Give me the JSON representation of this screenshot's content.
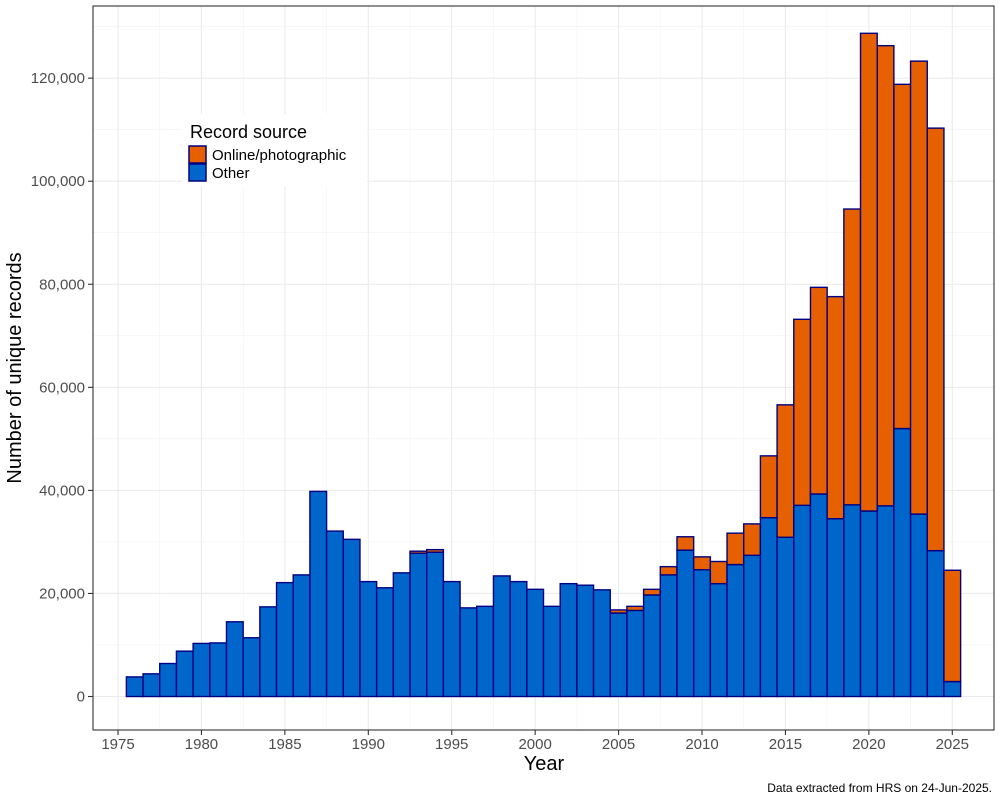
{
  "chart_data": {
    "type": "bar",
    "stacked": true,
    "title": "",
    "xlabel": "Year",
    "ylabel": "Number of unique records",
    "caption": "Data extracted from HRS on 24-Jun-2025.",
    "legend": {
      "title": "Record source",
      "placement": "top-left",
      "entries": [
        "Online/photographic",
        "Other"
      ]
    },
    "grid": true,
    "xlim": [
      1973.5,
      2027.5
    ],
    "ylim": [
      -6500,
      134000
    ],
    "x_ticks": [
      1975,
      1980,
      1985,
      1990,
      1995,
      2000,
      2005,
      2010,
      2015,
      2020,
      2025
    ],
    "y_ticks": [
      0,
      20000,
      40000,
      60000,
      80000,
      100000,
      120000
    ],
    "y_tick_labels": [
      "0",
      "20,000",
      "40,000",
      "60,000",
      "80,000",
      "100,000",
      "120,000"
    ],
    "categories": [
      1976,
      1977,
      1978,
      1979,
      1980,
      1981,
      1982,
      1983,
      1984,
      1985,
      1986,
      1987,
      1988,
      1989,
      1990,
      1991,
      1992,
      1993,
      1994,
      1995,
      1996,
      1997,
      1998,
      1999,
      2000,
      2001,
      2002,
      2003,
      2004,
      2005,
      2006,
      2007,
      2008,
      2009,
      2010,
      2011,
      2012,
      2013,
      2014,
      2015,
      2016,
      2017,
      2018,
      2019,
      2020,
      2021,
      2022,
      2023,
      2024,
      2025
    ],
    "series": [
      {
        "name": "Other",
        "color": "#0066CC",
        "values": [
          3800,
          4400,
          6400,
          8800,
          10300,
          10400,
          14500,
          11400,
          17400,
          22100,
          23600,
          39800,
          32100,
          30500,
          22300,
          21100,
          24000,
          27800,
          28000,
          22300,
          17200,
          17500,
          23400,
          22300,
          20800,
          17500,
          21900,
          21600,
          20700,
          16200,
          16700,
          19700,
          23600,
          28400,
          24600,
          21900,
          25600,
          27400,
          34700,
          30900,
          37100,
          39300,
          34500,
          37200,
          36000,
          37000,
          52000,
          35400,
          28300,
          2900
        ]
      },
      {
        "name": "Online/photographic",
        "color": "#E66000",
        "values": [
          0,
          0,
          0,
          0,
          0,
          0,
          0,
          0,
          0,
          0,
          0,
          0,
          0,
          0,
          0,
          0,
          0,
          400,
          500,
          0,
          0,
          0,
          0,
          0,
          0,
          0,
          0,
          0,
          0,
          600,
          800,
          1100,
          1600,
          2600,
          2500,
          4300,
          6100,
          6100,
          12000,
          25700,
          36100,
          40100,
          43100,
          57400,
          92700,
          89300,
          66800,
          87900,
          82000,
          21600
        ]
      }
    ]
  }
}
